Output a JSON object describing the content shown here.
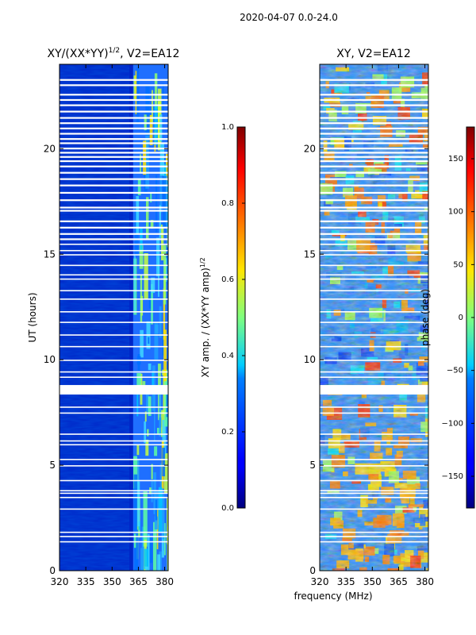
{
  "figure": {
    "suptitle": "2020-04-07 0.0-24.0",
    "xlabel_shared": "frequency (MHz)"
  },
  "chart_data": [
    {
      "type": "heatmap",
      "title": "XY/(XX*YY)^(1/2), V2=EA12",
      "title_main": "XY/(XX*YY)",
      "title_sup": "1/2",
      "title_tail": ", V2=EA12",
      "xlabel": "",
      "ylabel": "UT (hours)",
      "xlim": [
        320,
        382
      ],
      "ylim": [
        0,
        24
      ],
      "xticks": [
        320,
        335,
        350,
        365,
        380
      ],
      "yticks": [
        0,
        5,
        10,
        15,
        20
      ],
      "grid": false,
      "colormap": "jet",
      "colorbar": {
        "label": "XY amp. / (XX*YY amp)^(1/2)",
        "label_main": "XY amp. / (XX*YY amp)",
        "label_sup": "1/2",
        "range": [
          0.0,
          1.0
        ],
        "ticks": [
          "0.0",
          "0.2",
          "0.4",
          "0.6",
          "0.8",
          "1.0"
        ],
        "tick_values": [
          0.0,
          0.2,
          0.4,
          0.6,
          0.8,
          1.0
        ]
      },
      "data_description_values": {
        "background_level_320_360MHz": 0.1,
        "band_level_360_382MHz": 0.45
      }
    },
    {
      "type": "heatmap",
      "title": "XY, V2=EA12",
      "xlabel": "",
      "ylabel": "",
      "xlim": [
        320,
        382
      ],
      "ylim": [
        0,
        24
      ],
      "xticks": [
        320,
        335,
        350,
        365,
        380
      ],
      "yticks": [
        0,
        5,
        10,
        15,
        20
      ],
      "grid": false,
      "colormap": "jet",
      "colorbar": {
        "label": "phase (deg)",
        "range": [
          -180,
          180
        ],
        "ticks": [
          "−150",
          "−100",
          "−50",
          "0",
          "50",
          "100",
          "150"
        ],
        "tick_values": [
          -150,
          -100,
          -50,
          0,
          50,
          100,
          150
        ]
      }
    }
  ],
  "flagged_hours": [
    1.4,
    1.65,
    1.85,
    2.95,
    3.5,
    3.7,
    3.82,
    4.3,
    5.0,
    5.3,
    6.0,
    6.18,
    6.5,
    7.5,
    7.78,
    8.65,
    8.8,
    9.2,
    9.45,
    10.0,
    10.65,
    11.2,
    11.8,
    12.3,
    12.9,
    13.3,
    13.85,
    14.05,
    14.5,
    15.0,
    15.2,
    15.5,
    15.75,
    16.0,
    16.3,
    16.6,
    17.1,
    17.25,
    17.6,
    17.95,
    18.3,
    18.6,
    18.9,
    19.2,
    19.45,
    19.65,
    19.85,
    20.05,
    20.3,
    20.5,
    20.75,
    21.0,
    21.25,
    21.5,
    21.8,
    22.1,
    22.35,
    22.6,
    23.05,
    23.3
  ]
}
